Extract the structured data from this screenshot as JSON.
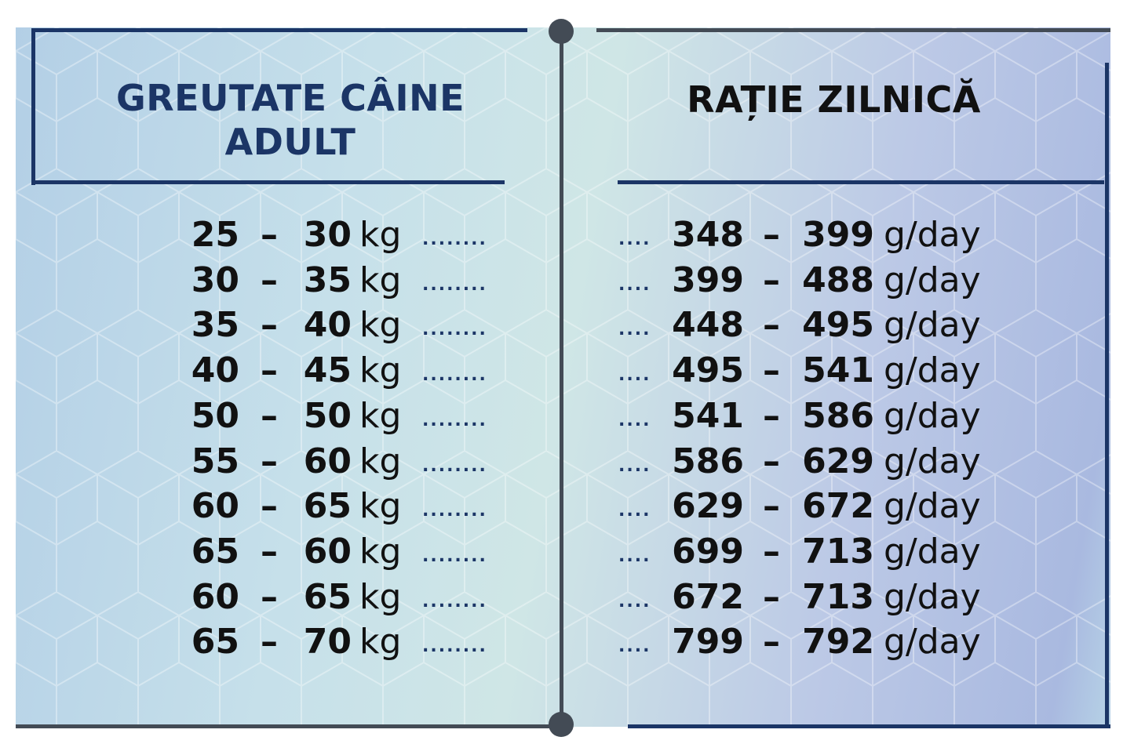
{
  "left": {
    "header_line1": "GREUTATE CÂINE",
    "header_line2": "ADULT",
    "rows": [
      {
        "from": "25",
        "to": "30",
        "unit": "kg"
      },
      {
        "from": "30",
        "to": "35",
        "unit": "kg"
      },
      {
        "from": "35",
        "to": "40",
        "unit": "kg"
      },
      {
        "from": "40",
        "to": "45",
        "unit": "kg"
      },
      {
        "from": "50",
        "to": "50",
        "unit": "kg"
      },
      {
        "from": "55",
        "to": "60",
        "unit": "kg"
      },
      {
        "from": "60",
        "to": "65",
        "unit": "kg"
      },
      {
        "from": "65",
        "to": "60",
        "unit": "kg"
      },
      {
        "from": "60",
        "to": "65",
        "unit": "kg"
      },
      {
        "from": "65",
        "to": "70",
        "unit": "kg"
      }
    ]
  },
  "right": {
    "header": "RAȚIE ZILNICĂ",
    "rows": [
      {
        "from": "348",
        "to": "399",
        "unit": "g/day"
      },
      {
        "from": "399",
        "to": "488",
        "unit": "g/day"
      },
      {
        "from": "448",
        "to": "495",
        "unit": "g/day"
      },
      {
        "from": "495",
        "to": "541",
        "unit": "g/day"
      },
      {
        "from": "541",
        "to": "586",
        "unit": "g/day"
      },
      {
        "from": "586",
        "to": "629",
        "unit": "g/day"
      },
      {
        "from": "629",
        "to": "672",
        "unit": "g/day"
      },
      {
        "from": "699",
        "to": "713",
        "unit": "g/day"
      },
      {
        "from": "672",
        "to": "713",
        "unit": "g/day"
      },
      {
        "from": "799",
        "to": "792",
        "unit": "g/day"
      }
    ]
  },
  "dash": "–",
  "leader_left": "........",
  "leader_right": "....",
  "colors": {
    "navy": "#1b3566",
    "divider": "#434b55",
    "text": "#111111"
  }
}
